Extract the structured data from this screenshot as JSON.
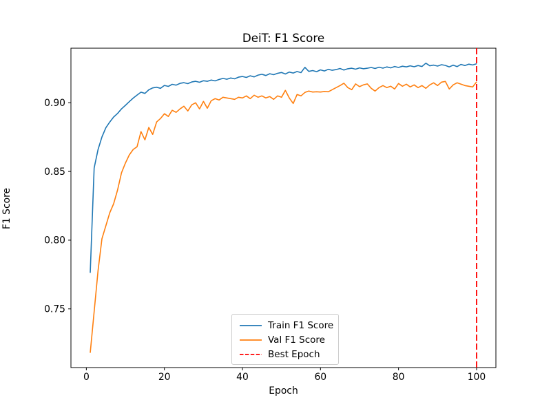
{
  "figure": {
    "background": "#ffffff"
  },
  "chart_data": {
    "type": "line",
    "title": "DeiT: F1 Score",
    "xlabel": "Epoch",
    "ylabel": "F1 Score",
    "xlim": [
      -3.95,
      104.95
    ],
    "ylim": [
      0.7073,
      0.9397
    ],
    "x_ticks": [
      0,
      20,
      40,
      60,
      80,
      100
    ],
    "x_tick_labels": [
      "0",
      "20",
      "40",
      "60",
      "80",
      "100"
    ],
    "y_ticks": [
      0.75,
      0.8,
      0.85,
      0.9
    ],
    "y_tick_labels": [
      "0.75",
      "0.80",
      "0.85",
      "0.90"
    ],
    "grid": false,
    "legend_position": "lower center inside axes",
    "colors": {
      "train": "#1f77b4",
      "val": "#ff7f0e",
      "best_epoch": "#ff0000"
    },
    "best_epoch": 100,
    "x": [
      1,
      2,
      3,
      4,
      5,
      6,
      7,
      8,
      9,
      10,
      11,
      12,
      13,
      14,
      15,
      16,
      17,
      18,
      19,
      20,
      21,
      22,
      23,
      24,
      25,
      26,
      27,
      28,
      29,
      30,
      31,
      32,
      33,
      34,
      35,
      36,
      37,
      38,
      39,
      40,
      41,
      42,
      43,
      44,
      45,
      46,
      47,
      48,
      49,
      50,
      51,
      52,
      53,
      54,
      55,
      56,
      57,
      58,
      59,
      60,
      61,
      62,
      63,
      64,
      65,
      66,
      67,
      68,
      69,
      70,
      71,
      72,
      73,
      74,
      75,
      76,
      77,
      78,
      79,
      80,
      81,
      82,
      83,
      84,
      85,
      86,
      87,
      88,
      89,
      90,
      91,
      92,
      93,
      94,
      95,
      96,
      97,
      98,
      99,
      100
    ],
    "series": [
      {
        "name": "Train F1 Score",
        "color": "#1f77b4",
        "style": "solid",
        "values": [
          0.7762,
          0.8525,
          0.866,
          0.8751,
          0.8818,
          0.886,
          0.8896,
          0.8922,
          0.8955,
          0.8981,
          0.9008,
          0.9034,
          0.9056,
          0.9077,
          0.9068,
          0.9094,
          0.9108,
          0.9113,
          0.9105,
          0.9126,
          0.9119,
          0.9134,
          0.9128,
          0.9141,
          0.9146,
          0.9139,
          0.9151,
          0.9156,
          0.9149,
          0.916,
          0.9156,
          0.9165,
          0.9159,
          0.9169,
          0.9177,
          0.9171,
          0.918,
          0.9174,
          0.9186,
          0.9191,
          0.9184,
          0.9196,
          0.9188,
          0.9201,
          0.9207,
          0.9198,
          0.9211,
          0.9204,
          0.9214,
          0.922,
          0.9209,
          0.9223,
          0.9216,
          0.9227,
          0.9219,
          0.9258,
          0.9228,
          0.9234,
          0.9226,
          0.9239,
          0.9231,
          0.9243,
          0.9236,
          0.9241,
          0.9249,
          0.9238,
          0.9247,
          0.9251,
          0.9244,
          0.9254,
          0.9247,
          0.9251,
          0.9257,
          0.9249,
          0.9259,
          0.9252,
          0.9261,
          0.9254,
          0.9264,
          0.9257,
          0.9266,
          0.9261,
          0.9269,
          0.9262,
          0.9271,
          0.9264,
          0.9288,
          0.9269,
          0.9274,
          0.9267,
          0.9277,
          0.9272,
          0.9261,
          0.9274,
          0.9263,
          0.9279,
          0.9271,
          0.9281,
          0.9275,
          0.9284
        ]
      },
      {
        "name": "Val F1 Score",
        "color": "#ff7f0e",
        "style": "solid",
        "values": [
          0.718,
          0.748,
          0.778,
          0.801,
          0.8105,
          0.82,
          0.8265,
          0.8365,
          0.849,
          0.856,
          0.862,
          0.866,
          0.868,
          0.879,
          0.873,
          0.882,
          0.877,
          0.886,
          0.8885,
          0.892,
          0.89,
          0.8945,
          0.893,
          0.8955,
          0.8975,
          0.894,
          0.8985,
          0.9,
          0.8955,
          0.901,
          0.896,
          0.9015,
          0.903,
          0.902,
          0.904,
          0.9035,
          0.903,
          0.9025,
          0.904,
          0.9035,
          0.905,
          0.903,
          0.9055,
          0.904,
          0.905,
          0.9035,
          0.9045,
          0.9025,
          0.905,
          0.904,
          0.909,
          0.9035,
          0.8995,
          0.906,
          0.905,
          0.9075,
          0.9085,
          0.9078,
          0.908,
          0.9078,
          0.9082,
          0.908,
          0.9095,
          0.911,
          0.9125,
          0.9142,
          0.911,
          0.9095,
          0.9137,
          0.9117,
          0.913,
          0.9137,
          0.9105,
          0.9085,
          0.911,
          0.9125,
          0.911,
          0.912,
          0.91,
          0.914,
          0.912,
          0.9135,
          0.9115,
          0.913,
          0.911,
          0.9125,
          0.9105,
          0.913,
          0.9145,
          0.9125,
          0.915,
          0.9155,
          0.91,
          0.913,
          0.9145,
          0.9135,
          0.9125,
          0.912,
          0.9115,
          0.9152
        ]
      }
    ],
    "vline": {
      "name": "Best Epoch",
      "x": 100,
      "color": "#ff0000",
      "style": "dashed"
    },
    "legend_entries": [
      {
        "label": "Train F1 Score",
        "color": "#1f77b4",
        "dash": false
      },
      {
        "label": "Val F1 Score",
        "color": "#ff7f0e",
        "dash": false
      },
      {
        "label": "Best Epoch",
        "color": "#ff0000",
        "dash": true
      }
    ]
  }
}
